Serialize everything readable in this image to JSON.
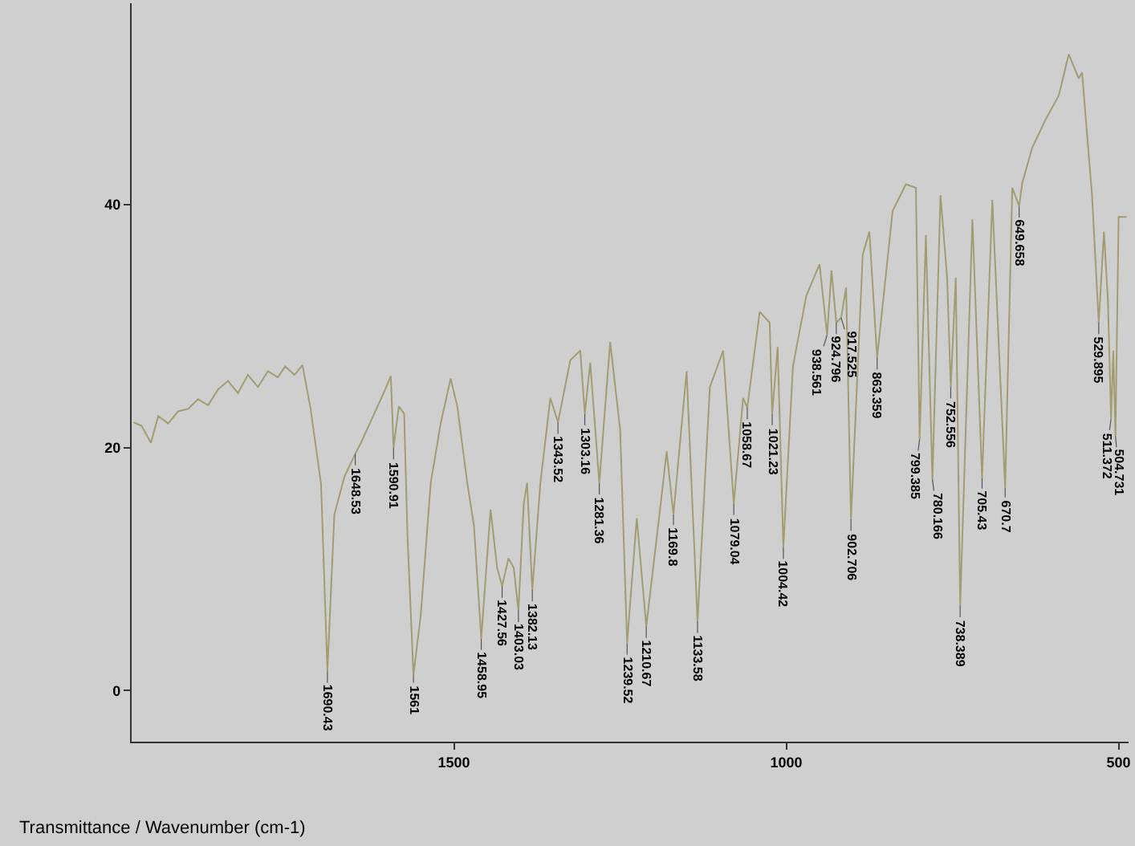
{
  "chart_data": {
    "type": "line",
    "xlabel": "Transmittance / Wavenumber (cm-1)",
    "xlim": [
      1985,
      485
    ],
    "xticks": [
      1500,
      1000,
      500
    ],
    "ylim": [
      -4.2,
      56.6
    ],
    "yticks": [
      0,
      20,
      40
    ],
    "grid": false,
    "marker": "none",
    "line_style": "solid",
    "series": [
      {
        "color": "#a39c72",
        "x": [
          1982,
          1970,
          1956,
          1945,
          1930,
          1915,
          1900,
          1885,
          1870,
          1855,
          1840,
          1825,
          1810,
          1795,
          1780,
          1765,
          1754,
          1740,
          1728,
          1716,
          1700,
          1690.43,
          1680,
          1665,
          1648.53,
          1640,
          1620,
          1605,
          1595,
          1590.91,
          1583,
          1575,
          1570,
          1561,
          1550,
          1535,
          1520,
          1505,
          1495,
          1480,
          1470,
          1458.95,
          1445,
          1435,
          1427.56,
          1418,
          1410,
          1403.03,
          1395,
          1390,
          1382.13,
          1370,
          1355,
          1343.52,
          1325,
          1310,
          1303.16,
          1295,
          1281.36,
          1265,
          1250,
          1239.52,
          1225,
          1210.67,
          1190,
          1180,
          1169.8,
          1150,
          1133.58,
          1115,
          1095,
          1079.04,
          1065,
          1058.67,
          1040,
          1025,
          1021.23,
          1013,
          1004.42,
          990,
          970,
          950,
          938.561,
          932,
          924.796,
          917.525,
          910,
          902.706,
          885,
          875,
          863.359,
          840,
          820,
          805,
          799.385,
          790,
          780.166,
          768,
          758,
          752.556,
          745,
          738.389,
          720,
          705.43,
          690,
          670.7,
          660,
          649.658,
          645,
          630,
          610,
          590,
          575,
          560,
          555,
          540,
          529.895,
          522,
          516,
          511.372,
          508,
          504.731,
          500,
          488
        ],
        "values": [
          22.1,
          21.8,
          20.4,
          22.6,
          22.0,
          23.0,
          23.2,
          24.0,
          23.5,
          24.8,
          25.5,
          24.5,
          26.0,
          25.0,
          26.3,
          25.8,
          26.7,
          26.0,
          26.8,
          23.3,
          17.0,
          1.6,
          14.5,
          17.6,
          19.5,
          20.4,
          22.8,
          24.6,
          25.9,
          20.0,
          23.4,
          22.8,
          12.8,
          1.3,
          6.2,
          17.1,
          22.0,
          25.7,
          23.4,
          17.1,
          13.6,
          4.3,
          14.9,
          10.1,
          8.6,
          10.9,
          10.1,
          6.6,
          15.4,
          17.1,
          8.3,
          17.1,
          24.1,
          22.1,
          27.2,
          28.0,
          22.8,
          27.0,
          17.1,
          28.7,
          21.5,
          3.9,
          14.2,
          5.3,
          14.9,
          19.7,
          14.5,
          26.3,
          5.7,
          25.0,
          28.0,
          15.4,
          24.1,
          23.3,
          31.2,
          30.3,
          22.8,
          28.3,
          11.8,
          26.7,
          32.5,
          35.1,
          29.3,
          34.6,
          30.3,
          30.7,
          33.2,
          14.1,
          35.9,
          37.8,
          27.4,
          39.5,
          41.7,
          41.4,
          20.7,
          37.5,
          17.4,
          40.8,
          34.0,
          25.0,
          34.0,
          7.0,
          38.8,
          17.5,
          40.4,
          16.7,
          41.4,
          39.9,
          41.8,
          44.7,
          47.0,
          49.0,
          52.4,
          50.4,
          50.9,
          40.8,
          30.3,
          37.8,
          32.0,
          22.4,
          28.0,
          21.0,
          39.0,
          39.0
        ]
      }
    ],
    "annotations": [
      {
        "text": "1690.43",
        "x": 1690.43,
        "y": 1.6
      },
      {
        "text": "1648.53",
        "x": 1648.53,
        "y": 19.5
      },
      {
        "text": "1590.91",
        "x": 1590.91,
        "y": 20.0
      },
      {
        "text": "1561",
        "x": 1561,
        "y": 1.3
      },
      {
        "text": "1458.95",
        "x": 1458.95,
        "y": 4.3
      },
      {
        "text": "1427.56",
        "x": 1427.56,
        "y": 8.6
      },
      {
        "text": "1403.03",
        "x": 1403.03,
        "y": 6.6
      },
      {
        "text": "1382.13",
        "x": 1382.13,
        "y": 8.3
      },
      {
        "text": "1343.52",
        "x": 1343.52,
        "y": 22.1
      },
      {
        "text": "1303.16",
        "x": 1303.16,
        "y": 22.8
      },
      {
        "text": "1281.36",
        "x": 1281.36,
        "y": 17.1
      },
      {
        "text": "1239.52",
        "x": 1239.52,
        "y": 3.9
      },
      {
        "text": "1210.67",
        "x": 1210.67,
        "y": 5.3
      },
      {
        "text": "1169.8",
        "x": 1169.8,
        "y": 14.5
      },
      {
        "text": "1133.58",
        "x": 1133.58,
        "y": 5.7
      },
      {
        "text": "1079.04",
        "x": 1079.04,
        "y": 15.4
      },
      {
        "text": "1058.67",
        "x": 1058.67,
        "y": 23.3
      },
      {
        "text": "1021.23",
        "x": 1021.23,
        "y": 22.8
      },
      {
        "text": "1004.42",
        "x": 1004.42,
        "y": 11.8
      },
      {
        "text": "938.561",
        "x": 938.561,
        "y": 29.3
      },
      {
        "text": "924.796",
        "x": 924.796,
        "y": 30.3
      },
      {
        "text": "917.525",
        "x": 917.525,
        "y": 30.7
      },
      {
        "text": "902.706",
        "x": 902.706,
        "y": 14.1
      },
      {
        "text": "863.359",
        "x": 863.359,
        "y": 27.4
      },
      {
        "text": "799.385",
        "x": 799.385,
        "y": 20.7
      },
      {
        "text": "780.166",
        "x": 780.166,
        "y": 17.4
      },
      {
        "text": "752.556",
        "x": 752.556,
        "y": 25.0
      },
      {
        "text": "738.389",
        "x": 738.389,
        "y": 7.0
      },
      {
        "text": "705.43",
        "x": 705.43,
        "y": 17.5
      },
      {
        "text": "670.7",
        "x": 670.7,
        "y": 16.7
      },
      {
        "text": "649.658",
        "x": 649.658,
        "y": 39.9
      },
      {
        "text": "529.895",
        "x": 529.895,
        "y": 30.3
      },
      {
        "text": "511.372",
        "x": 511.372,
        "y": 22.4
      },
      {
        "text": "504.731",
        "x": 504.731,
        "y": 21.0
      }
    ]
  }
}
